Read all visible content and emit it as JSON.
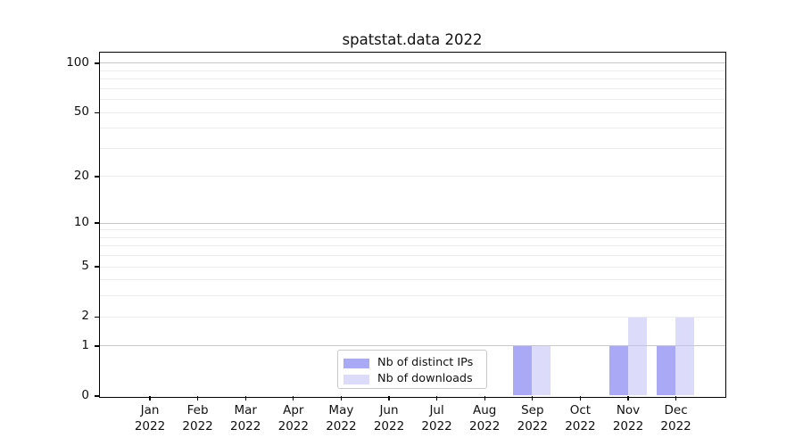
{
  "chart_data": {
    "type": "bar",
    "title": "spatstat.data 2022",
    "categories": [
      "Jan",
      "Feb",
      "Mar",
      "Apr",
      "May",
      "Jun",
      "Jul",
      "Aug",
      "Sep",
      "Oct",
      "Nov",
      "Dec"
    ],
    "year_label": "2022",
    "series": [
      {
        "name": "Nb of distinct IPs",
        "color": "#a9a9f5",
        "values": [
          0,
          0,
          0,
          0,
          0,
          0,
          0,
          0,
          1,
          0,
          1,
          1
        ]
      },
      {
        "name": "Nb of downloads",
        "color": "#dcdcfa",
        "values": [
          0,
          0,
          0,
          0,
          0,
          0,
          0,
          0,
          1,
          0,
          2,
          2
        ]
      }
    ],
    "yaxis": {
      "scale": "log1p",
      "ticks": [
        0,
        1,
        2,
        5,
        10,
        20,
        50,
        100
      ],
      "range_top": 115,
      "major_gridlines": [
        1,
        10,
        100
      ],
      "minor_gridlines": [
        2,
        3,
        4,
        5,
        6,
        7,
        8,
        9,
        20,
        30,
        40,
        50,
        60,
        70,
        80,
        90
      ],
      "major_grid_color": "#c8c8c8",
      "minor_grid_color": "#ededed",
      "grid": true
    },
    "xlabel": "",
    "ylabel": "",
    "legend_position": "inside-bottom-center"
  }
}
